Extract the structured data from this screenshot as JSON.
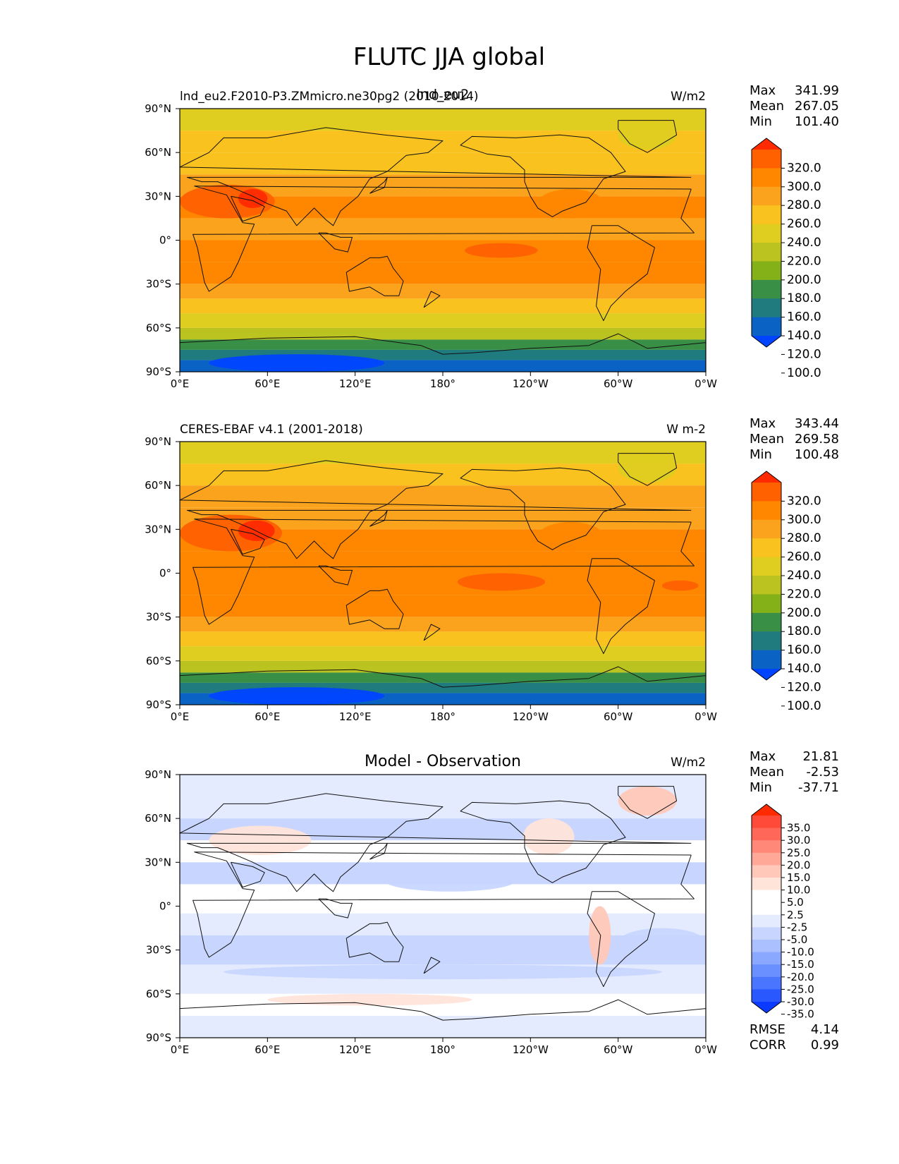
{
  "figure": {
    "title": "FLUTC JJA global"
  },
  "chart_data": [
    {
      "type": "heatmap",
      "panel": "model",
      "title": "lnd_eu2",
      "subtitle_left": "lnd_eu2.F2010-P3.ZMmicro.ne30pg2 (2010-2014)",
      "units": "W/m2",
      "stats": [
        {
          "label": "Max",
          "value": "341.99"
        },
        {
          "label": "Mean",
          "value": "267.05"
        },
        {
          "label": "Min",
          "value": "101.40"
        }
      ],
      "colorbar": {
        "labels": [
          "320.0",
          "300.0",
          "280.0",
          "260.0",
          "240.0",
          "220.0",
          "200.0",
          "180.0",
          "160.0",
          "140.0",
          "120.0",
          "100.0"
        ],
        "colors": [
          "#ff2a00",
          "#ff6000",
          "#ff8700",
          "#fba31c",
          "#fac21e",
          "#dfcd20",
          "#bac31f",
          "#84b118",
          "#3a8f47",
          "#207b7e",
          "#0a63c4",
          "#0044ff"
        ],
        "extend": "both"
      },
      "field": {
        "lat_bands": [
          {
            "lat": [
              90,
              75
            ],
            "value": 235
          },
          {
            "lat": [
              75,
              60
            ],
            "value": 245
          },
          {
            "lat": [
              60,
              45
            ],
            "value": 255
          },
          {
            "lat": [
              45,
              30
            ],
            "value": 270
          },
          {
            "lat": [
              30,
              15
            ],
            "value": 285
          },
          {
            "lat": [
              15,
              0
            ],
            "value": 275
          },
          {
            "lat": [
              0,
              -15
            ],
            "value": 285
          },
          {
            "lat": [
              -15,
              -30
            ],
            "value": 285
          },
          {
            "lat": [
              -30,
              -40
            ],
            "value": 268
          },
          {
            "lat": [
              -40,
              -50
            ],
            "value": 250
          },
          {
            "lat": [
              -50,
              -60
            ],
            "value": 235
          },
          {
            "lat": [
              -60,
              -68
            ],
            "value": 205
          },
          {
            "lat": [
              -68,
              -75
            ],
            "value": 170
          },
          {
            "lat": [
              -75,
              -82
            ],
            "value": 140
          },
          {
            "lat": [
              -82,
              -90
            ],
            "value": 120
          }
        ],
        "features": [
          {
            "name": "sahara-arabia",
            "lon": [
              0,
              65
            ],
            "lat": [
              38,
              15
            ],
            "value": 305
          },
          {
            "name": "iran-arabia-hot",
            "lon": [
              40,
              60
            ],
            "lat": [
              35,
              22
            ],
            "value": 325
          },
          {
            "name": "tropical-pacific-east",
            "lon": [
              195,
              245
            ],
            "lat": [
              -2,
              -12
            ],
            "value": 305
          },
          {
            "name": "east-pacific-subtropic",
            "lon": [
              245,
              290
            ],
            "lat": [
              35,
              15
            ],
            "value": 290
          },
          {
            "name": "greenland",
            "lon": [
              300,
              340
            ],
            "lat": [
              82,
              62
            ],
            "value": 220
          },
          {
            "name": "antarctica-east",
            "lon": [
              20,
              140
            ],
            "lat": [
              -78,
              -90
            ],
            "value": 110
          }
        ]
      },
      "x_ticks": [
        "0°E",
        "60°E",
        "120°E",
        "180°",
        "120°W",
        "60°W",
        "0°W"
      ],
      "y_ticks": [
        "90°N",
        "60°N",
        "30°N",
        "0°",
        "30°S",
        "60°S",
        "90°S"
      ],
      "xlim": [
        0,
        360
      ],
      "ylim": [
        -90,
        90
      ]
    },
    {
      "type": "heatmap",
      "panel": "observation",
      "title": "",
      "subtitle_left": "CERES-EBAF v4.1 (2001-2018)",
      "units": "W m-2",
      "stats": [
        {
          "label": "Max",
          "value": "343.44"
        },
        {
          "label": "Mean",
          "value": "269.58"
        },
        {
          "label": "Min",
          "value": "100.48"
        }
      ],
      "colorbar": {
        "labels": [
          "320.0",
          "300.0",
          "280.0",
          "260.0",
          "240.0",
          "220.0",
          "200.0",
          "180.0",
          "160.0",
          "140.0",
          "120.0",
          "100.0"
        ],
        "colors": [
          "#ff2a00",
          "#ff6000",
          "#ff8700",
          "#fba31c",
          "#fac21e",
          "#dfcd20",
          "#bac31f",
          "#84b118",
          "#3a8f47",
          "#207b7e",
          "#0a63c4",
          "#0044ff"
        ],
        "extend": "both"
      },
      "field": {
        "lat_bands": [
          {
            "lat": [
              90,
              75
            ],
            "value": 235
          },
          {
            "lat": [
              75,
              60
            ],
            "value": 250
          },
          {
            "lat": [
              60,
              45
            ],
            "value": 262
          },
          {
            "lat": [
              45,
              30
            ],
            "value": 275
          },
          {
            "lat": [
              30,
              15
            ],
            "value": 290
          },
          {
            "lat": [
              15,
              0
            ],
            "value": 280
          },
          {
            "lat": [
              0,
              -15
            ],
            "value": 290
          },
          {
            "lat": [
              -15,
              -30
            ],
            "value": 285
          },
          {
            "lat": [
              -30,
              -40
            ],
            "value": 270
          },
          {
            "lat": [
              -40,
              -50
            ],
            "value": 252
          },
          {
            "lat": [
              -50,
              -60
            ],
            "value": 238
          },
          {
            "lat": [
              -60,
              -68
            ],
            "value": 205
          },
          {
            "lat": [
              -68,
              -75
            ],
            "value": 175
          },
          {
            "lat": [
              -75,
              -82
            ],
            "value": 140
          },
          {
            "lat": [
              -82,
              -90
            ],
            "value": 120
          }
        ],
        "features": [
          {
            "name": "sahara-arabia",
            "lon": [
              0,
              70
            ],
            "lat": [
              40,
              15
            ],
            "value": 305
          },
          {
            "name": "iran-arabia-hot",
            "lon": [
              40,
              65
            ],
            "lat": [
              36,
              22
            ],
            "value": 325
          },
          {
            "name": "tropical-pacific-east",
            "lon": [
              190,
              250
            ],
            "lat": [
              0,
              -12
            ],
            "value": 305
          },
          {
            "name": "south-atlantic-east",
            "lon": [
              330,
              355
            ],
            "lat": [
              -5,
              -12
            ],
            "value": 305
          },
          {
            "name": "east-pacific-subtropic",
            "lon": [
              245,
              290
            ],
            "lat": [
              35,
              15
            ],
            "value": 295
          },
          {
            "name": "greenland",
            "lon": [
              300,
              340
            ],
            "lat": [
              82,
              62
            ],
            "value": 225
          },
          {
            "name": "antarctica-east",
            "lon": [
              20,
              140
            ],
            "lat": [
              -78,
              -90
            ],
            "value": 110
          }
        ]
      },
      "x_ticks": [
        "0°E",
        "60°E",
        "120°E",
        "180°",
        "120°W",
        "60°W",
        "0°W"
      ],
      "y_ticks": [
        "90°N",
        "60°N",
        "30°N",
        "0°",
        "30°S",
        "60°S",
        "90°S"
      ],
      "xlim": [
        0,
        360
      ],
      "ylim": [
        -90,
        90
      ]
    },
    {
      "type": "heatmap",
      "panel": "difference",
      "title": "Model - Observation",
      "subtitle_left": "",
      "units": "W/m2",
      "stats": [
        {
          "label": "Max",
          "value": "21.81"
        },
        {
          "label": "Mean",
          "value": "-2.53"
        },
        {
          "label": "Min",
          "value": "-37.71"
        }
      ],
      "bottom_stats": [
        {
          "label": "RMSE",
          "value": "4.14"
        },
        {
          "label": "CORR",
          "value": "0.99"
        }
      ],
      "colorbar": {
        "labels": [
          "35.0",
          "30.0",
          "25.0",
          "20.0",
          "15.0",
          "10.0",
          "5.0",
          "2.5",
          "-2.5",
          "-5.0",
          "-10.0",
          "-15.0",
          "-20.0",
          "-25.0",
          "-30.0",
          "-35.0"
        ],
        "colors": [
          "#ff2a00",
          "#ff4a3a",
          "#ff6858",
          "#ff8878",
          "#ffa898",
          "#ffc8b8",
          "#ffe4da",
          "#ffffff",
          "#ffffff",
          "#e4ebff",
          "#c8d6ff",
          "#aac0ff",
          "#8aa8ff",
          "#6a90ff",
          "#4a75ff",
          "#2a58ff",
          "#0a3aff"
        ],
        "extend": "both"
      },
      "field": {
        "lat_bands": [
          {
            "lat": [
              90,
              60
            ],
            "value": -3
          },
          {
            "lat": [
              60,
              45
            ],
            "value": -6
          },
          {
            "lat": [
              45,
              30
            ],
            "value": 0
          },
          {
            "lat": [
              30,
              15
            ],
            "value": -6
          },
          {
            "lat": [
              15,
              5
            ],
            "value": -2
          },
          {
            "lat": [
              5,
              -5
            ],
            "value": 0
          },
          {
            "lat": [
              -5,
              -20
            ],
            "value": -4
          },
          {
            "lat": [
              -20,
              -40
            ],
            "value": -7
          },
          {
            "lat": [
              -40,
              -60
            ],
            "value": -4
          },
          {
            "lat": [
              -60,
              -75
            ],
            "value": 3
          },
          {
            "lat": [
              -75,
              -90
            ],
            "value": -3
          }
        ],
        "features": [
          {
            "name": "europe-central-asia-warm",
            "lon": [
              20,
              90
            ],
            "lat": [
              55,
              35
            ],
            "value": 8
          },
          {
            "name": "greenland-warm",
            "lon": [
              300,
              340
            ],
            "lat": [
              82,
              62
            ],
            "value": 12
          },
          {
            "name": "north-america-warm",
            "lon": [
              235,
              270
            ],
            "lat": [
              60,
              35
            ],
            "value": 6
          },
          {
            "name": "andes-warm",
            "lon": [
              280,
              295
            ],
            "lat": [
              0,
              -40
            ],
            "value": 10
          },
          {
            "name": "southern-ocean-warm",
            "lon": [
              60,
              200
            ],
            "lat": [
              -60,
              -68
            ],
            "value": 6
          },
          {
            "name": "pacific-cold",
            "lon": [
              140,
              230
            ],
            "lat": [
              25,
              10
            ],
            "value": -9
          },
          {
            "name": "southern-ocean-cold",
            "lon": [
              30,
              330
            ],
            "lat": [
              -40,
              -50
            ],
            "value": -9
          },
          {
            "name": "atlantic-cold",
            "lon": [
              300,
              360
            ],
            "lat": [
              -15,
              -35
            ],
            "value": -9
          }
        ]
      },
      "x_ticks": [
        "0°E",
        "60°E",
        "120°E",
        "180°",
        "120°W",
        "60°W",
        "0°W"
      ],
      "y_ticks": [
        "90°N",
        "60°N",
        "30°N",
        "0°",
        "30°S",
        "60°S",
        "90°S"
      ],
      "xlim": [
        0,
        360
      ],
      "ylim": [
        -90,
        90
      ]
    }
  ]
}
